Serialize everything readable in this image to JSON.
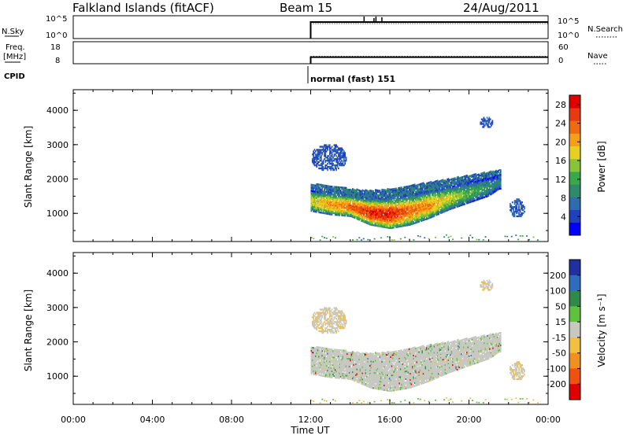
{
  "header": {
    "station": "Falkland Islands (fitACF)",
    "beam": "Beam 15",
    "date": "24/Aug/2011"
  },
  "top_panels": {
    "nsky_label": "N.Sky",
    "nsearch_label": "N.Search",
    "nsky_ticks": [
      "10^5",
      "10^0"
    ],
    "freq_label": "Freq.",
    "freq_unit": "[MHz]",
    "freq_ticks": [
      "18",
      "8"
    ],
    "nave_label": "Nave",
    "nave_ticks": [
      "60",
      "0"
    ],
    "cpid_label": "CPID",
    "cpid_value": "normal (fast) 151"
  },
  "colors": {
    "power_scale": [
      "#0000ff",
      "#2040c0",
      "#2e6cb0",
      "#2f8a6a",
      "#3aa84a",
      "#88c43a",
      "#e8d020",
      "#f4a018",
      "#f06a10",
      "#e83a10",
      "#e00000"
    ],
    "velocity_scale": [
      "#2030a0",
      "#2f6cc0",
      "#2f8a4a",
      "#60c040",
      "#c8c8c0",
      "#f0c040",
      "#f09020",
      "#f05010",
      "#e00000"
    ],
    "data_gray": "#c8c8c2"
  },
  "chart_data": [
    {
      "type": "heatmap",
      "title": "",
      "xlabel": "Time UT",
      "ylabel": "Slant Range [km]",
      "x_ticks": [
        "00:00",
        "04:00",
        "08:00",
        "12:00",
        "16:00",
        "20:00",
        "00:00"
      ],
      "y_ticks": [
        "1000",
        "2000",
        "3000",
        "4000"
      ],
      "xlim_hours": [
        0,
        24
      ],
      "ylim_km": [
        180,
        4600
      ],
      "colorbar_label": "Power [dB]",
      "colorbar_ticks": [
        "4",
        "8",
        "12",
        "16",
        "20",
        "24",
        "28"
      ],
      "colorbar_range": [
        0,
        30
      ],
      "data_start_hour": 12,
      "data_end_hour": 23.5,
      "main_band": [
        {
          "t": 12.0,
          "low_km": 1050,
          "high_km": 1850,
          "peak_dB": 16
        },
        {
          "t": 13.0,
          "low_km": 950,
          "high_km": 1800,
          "peak_dB": 20
        },
        {
          "t": 14.0,
          "low_km": 900,
          "high_km": 1700,
          "peak_dB": 22
        },
        {
          "t": 15.0,
          "low_km": 650,
          "high_km": 1650,
          "peak_dB": 26
        },
        {
          "t": 16.0,
          "low_km": 550,
          "high_km": 1700,
          "peak_dB": 26
        },
        {
          "t": 17.0,
          "low_km": 650,
          "high_km": 1800,
          "peak_dB": 22
        },
        {
          "t": 18.0,
          "low_km": 850,
          "high_km": 1900,
          "peak_dB": 20
        },
        {
          "t": 19.0,
          "low_km": 1100,
          "high_km": 2000,
          "peak_dB": 16
        },
        {
          "t": 20.0,
          "low_km": 1300,
          "high_km": 2100,
          "peak_dB": 12
        },
        {
          "t": 21.0,
          "low_km": 1500,
          "high_km": 2200,
          "peak_dB": 10
        },
        {
          "t": 21.5,
          "low_km": 1700,
          "high_km": 2250,
          "peak_dB": 8
        }
      ],
      "patches": [
        {
          "t0": 22.0,
          "t1": 22.8,
          "low_km": 850,
          "high_km": 1400,
          "peak_dB": 6
        },
        {
          "t0": 12.0,
          "t1": 13.8,
          "low_km": 2200,
          "high_km": 3000,
          "peak_dB": 5
        },
        {
          "t0": 20.5,
          "t1": 21.2,
          "low_km": 3450,
          "high_km": 3800,
          "peak_dB": 5
        }
      ]
    },
    {
      "type": "heatmap",
      "title": "",
      "xlabel": "Time UT",
      "ylabel": "Slant Range [km]",
      "x_ticks": [
        "00:00",
        "04:00",
        "08:00",
        "12:00",
        "16:00",
        "20:00",
        "00:00"
      ],
      "y_ticks": [
        "1000",
        "2000",
        "3000",
        "4000"
      ],
      "xlim_hours": [
        0,
        24
      ],
      "ylim_km": [
        180,
        4600
      ],
      "colorbar_label": "Velocity [m s⁻¹]",
      "colorbar_ticks": [
        "200",
        "100",
        "50",
        "15",
        "-15",
        "-50",
        "-100",
        "-200"
      ],
      "colorbar_range": [
        -250,
        250
      ],
      "data_start_hour": 12,
      "data_end_hour": 23.5,
      "main_band_velocity": [
        {
          "t": 12.0,
          "low_km": 1050,
          "high_km": 1850,
          "v": 0
        },
        {
          "t": 14.0,
          "low_km": 900,
          "high_km": 1700,
          "v": 0
        },
        {
          "t": 16.0,
          "low_km": 550,
          "high_km": 1700,
          "v": 10
        },
        {
          "t": 18.0,
          "low_km": 850,
          "high_km": 1900,
          "v": 0
        },
        {
          "t": 20.0,
          "low_km": 1300,
          "high_km": 2100,
          "v": 0
        },
        {
          "t": 21.5,
          "low_km": 1700,
          "high_km": 2250,
          "v": -10
        }
      ]
    }
  ],
  "timeline": {
    "nsky_level": "10^5",
    "freq_MHz": 11,
    "nave": 20,
    "start_hour": 12,
    "end_hour": 24
  }
}
